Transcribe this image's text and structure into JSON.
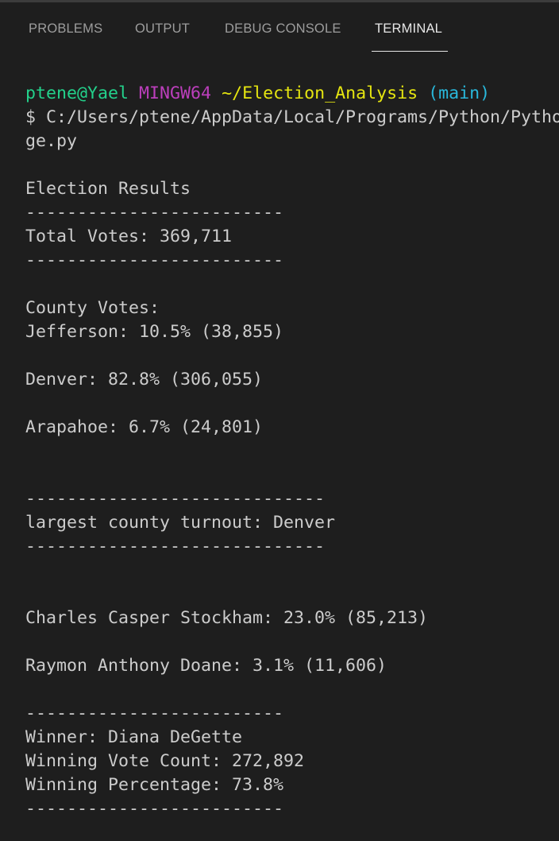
{
  "tabs": [
    "PROBLEMS",
    "OUTPUT",
    "DEBUG CONSOLE",
    "TERMINAL"
  ],
  "terminal": {
    "prompt": {
      "user": "ptene@Yael",
      "shell": "MINGW64",
      "path": "~/Election_Analysis",
      "branch": "(main)"
    },
    "command": [
      "$ C:/Users/ptene/AppData/Local/Programs/Python/Pytho",
      "ge.py"
    ],
    "header": [
      "Election Results",
      "-------------------------",
      "Total Votes: 369,711",
      "-------------------------"
    ],
    "county_title": "County Votes:",
    "counties": [
      "Jefferson: 10.5% (38,855)",
      "Denver: 82.8% (306,055)",
      "Arapahoe: 6.7% (24,801)"
    ],
    "largest": [
      "-----------------------------",
      "largest county turnout: Denver",
      "-----------------------------"
    ],
    "candidates": [
      "Charles Casper Stockham: 23.0% (85,213)",
      "Raymon Anthony Doane: 3.1% (11,606)"
    ],
    "winner": [
      "-------------------------",
      "Winner: Diana DeGette",
      "Winning Vote Count: 272,892",
      "Winning Percentage: 73.8%",
      "-------------------------"
    ]
  }
}
